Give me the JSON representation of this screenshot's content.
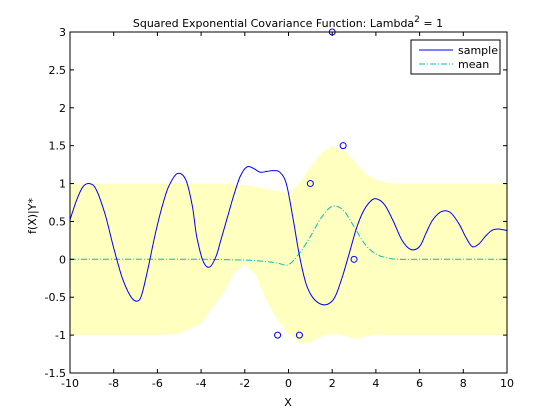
{
  "chart_data": {
    "type": "line",
    "title_main": "Squared Exponential Covariance Function: Lambda",
    "title_sup": "2",
    "title_tail": " = 1",
    "xlabel": "X",
    "ylabel": "f(X)|Y*",
    "xlim": [
      -10,
      10
    ],
    "ylim": [
      -1.5,
      3
    ],
    "xticks": [
      -10,
      -8,
      -6,
      -4,
      -2,
      0,
      2,
      4,
      6,
      8,
      10
    ],
    "yticks": [
      -1.5,
      -1,
      -0.5,
      0,
      0.5,
      1,
      1.5,
      2,
      2.5,
      3
    ],
    "grid": false,
    "legend_position": "top-right",
    "legend": [
      {
        "label": "sample",
        "color": "#0000ff",
        "style": "solid"
      },
      {
        "label": "mean",
        "color": "#00bfbf",
        "style": "dash-dot"
      }
    ],
    "band_color": "#ffffc0",
    "observations": {
      "x": [
        -0.5,
        0.5,
        1.0,
        2.0,
        2.5,
        3.0
      ],
      "y": [
        -1.0,
        -1.0,
        1.0,
        3.0,
        1.5,
        0.0
      ],
      "marker": "circle",
      "color": "#0000ff"
    },
    "mean": {
      "x": [
        -10,
        -6,
        -4,
        -2,
        -1,
        -0.5,
        0,
        0.5,
        1,
        1.5,
        2,
        2.5,
        3,
        3.5,
        4,
        4.5,
        5,
        6,
        8,
        10
      ],
      "y": [
        0,
        0,
        0,
        -0.01,
        -0.03,
        -0.05,
        -0.07,
        0.08,
        0.3,
        0.55,
        0.7,
        0.65,
        0.43,
        0.2,
        0.07,
        0.02,
        0,
        0,
        0,
        0
      ]
    },
    "band_upper": {
      "x": [
        -10,
        -6,
        -4,
        -3,
        -2,
        -1,
        -0.5,
        0,
        0.5,
        1,
        1.5,
        2,
        2.5,
        3,
        3.5,
        4,
        4.5,
        5,
        6,
        8,
        10
      ],
      "y": [
        1.0,
        1.0,
        1.0,
        1.0,
        0.98,
        0.93,
        0.9,
        0.87,
        1.0,
        1.22,
        1.4,
        1.5,
        1.45,
        1.3,
        1.13,
        1.05,
        1.01,
        1.0,
        1.0,
        1.0,
        1.0
      ]
    },
    "band_lower": {
      "x": [
        -10,
        -6,
        -5,
        -4,
        -3,
        -2.5,
        -2,
        -1.5,
        -1,
        -0.5,
        0,
        0.5,
        1,
        1.5,
        2,
        2.5,
        3,
        3.5,
        4,
        4.5,
        5,
        6,
        8,
        10
      ],
      "y": [
        -1.0,
        -1.0,
        -0.98,
        -0.85,
        -0.45,
        -0.18,
        -0.07,
        -0.2,
        -0.55,
        -0.8,
        -0.98,
        -1.1,
        -1.1,
        -1.02,
        -0.98,
        -1.0,
        -1.05,
        -1.02,
        -1.0,
        -1.0,
        -1.0,
        -1.0,
        -1.0,
        -1.0
      ]
    },
    "sample": {
      "x": [
        -10,
        -9.7,
        -9.4,
        -9.1,
        -8.8,
        -8.4,
        -8.0,
        -7.6,
        -7.2,
        -6.9,
        -6.7,
        -6.4,
        -6.1,
        -5.8,
        -5.5,
        -5.1,
        -4.7,
        -4.4,
        -4.2,
        -3.9,
        -3.6,
        -3.3,
        -3.1,
        -2.8,
        -2.5,
        -2.2,
        -1.9,
        -1.6,
        -1.3,
        -1.0,
        -0.7,
        -0.4,
        -0.1,
        0.2,
        0.5,
        0.8,
        1.1,
        1.4,
        1.7,
        2.0,
        2.2,
        2.5,
        2.8,
        3.1,
        3.4,
        3.7,
        4.0,
        4.4,
        4.8,
        5.2,
        5.6,
        6.0,
        6.3,
        6.6,
        7.0,
        7.4,
        7.8,
        8.1,
        8.4,
        8.7,
        9.0,
        9.3,
        9.6,
        10.0
      ],
      "y": [
        0.52,
        0.78,
        0.96,
        1.0,
        0.92,
        0.6,
        0.15,
        -0.25,
        -0.5,
        -0.55,
        -0.45,
        -0.08,
        0.33,
        0.68,
        0.95,
        1.13,
        1.05,
        0.7,
        0.3,
        -0.03,
        -0.1,
        0.05,
        0.25,
        0.55,
        0.85,
        1.1,
        1.22,
        1.2,
        1.15,
        1.16,
        1.17,
        1.15,
        1.0,
        0.55,
        0.05,
        -0.32,
        -0.5,
        -0.58,
        -0.6,
        -0.55,
        -0.45,
        -0.2,
        0.1,
        0.4,
        0.62,
        0.75,
        0.8,
        0.72,
        0.5,
        0.25,
        0.13,
        0.17,
        0.35,
        0.52,
        0.63,
        0.62,
        0.47,
        0.3,
        0.17,
        0.2,
        0.3,
        0.38,
        0.4,
        0.38
      ]
    }
  }
}
